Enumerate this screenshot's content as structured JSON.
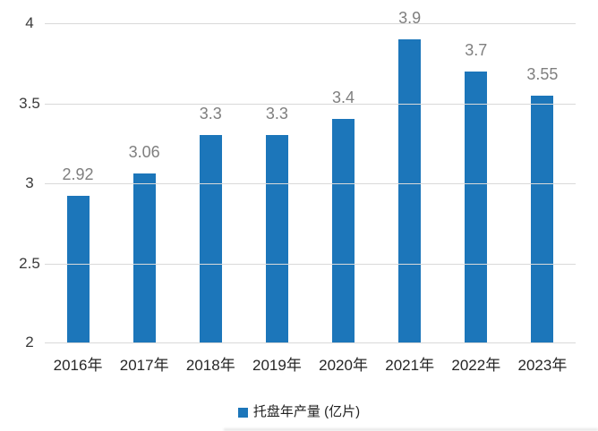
{
  "chart_data": {
    "type": "bar",
    "title": "",
    "categories": [
      "2016年",
      "2017年",
      "2018年",
      "2019年",
      "2020年",
      "2021年",
      "2022年",
      "2023年"
    ],
    "values": [
      2.92,
      3.06,
      3.3,
      3.3,
      3.4,
      3.9,
      3.7,
      3.55
    ],
    "value_labels": [
      "2.92",
      "3.06",
      "3.3",
      "3.3",
      "3.4",
      "3.9",
      "3.7",
      "3.55"
    ],
    "xlabel": "",
    "ylabel": "",
    "ylim": [
      2,
      4
    ],
    "yticks": [
      4,
      3.5,
      3,
      2.5,
      2
    ],
    "ytick_labels": [
      "4",
      "3.5",
      "3",
      "2.5",
      "2"
    ],
    "grid": true,
    "legend": {
      "label": "托盘年产量 (亿片)",
      "position": "bottom-center",
      "marker": "square"
    },
    "colors": {
      "bar": "#1c76ba",
      "value_label": "#7f7f7f",
      "ytick_label": "#3b3b3b",
      "xtick_label": "#262626",
      "gridline": "#d9d9d9",
      "legend_text": "#222222",
      "background": "#ffffff"
    }
  }
}
